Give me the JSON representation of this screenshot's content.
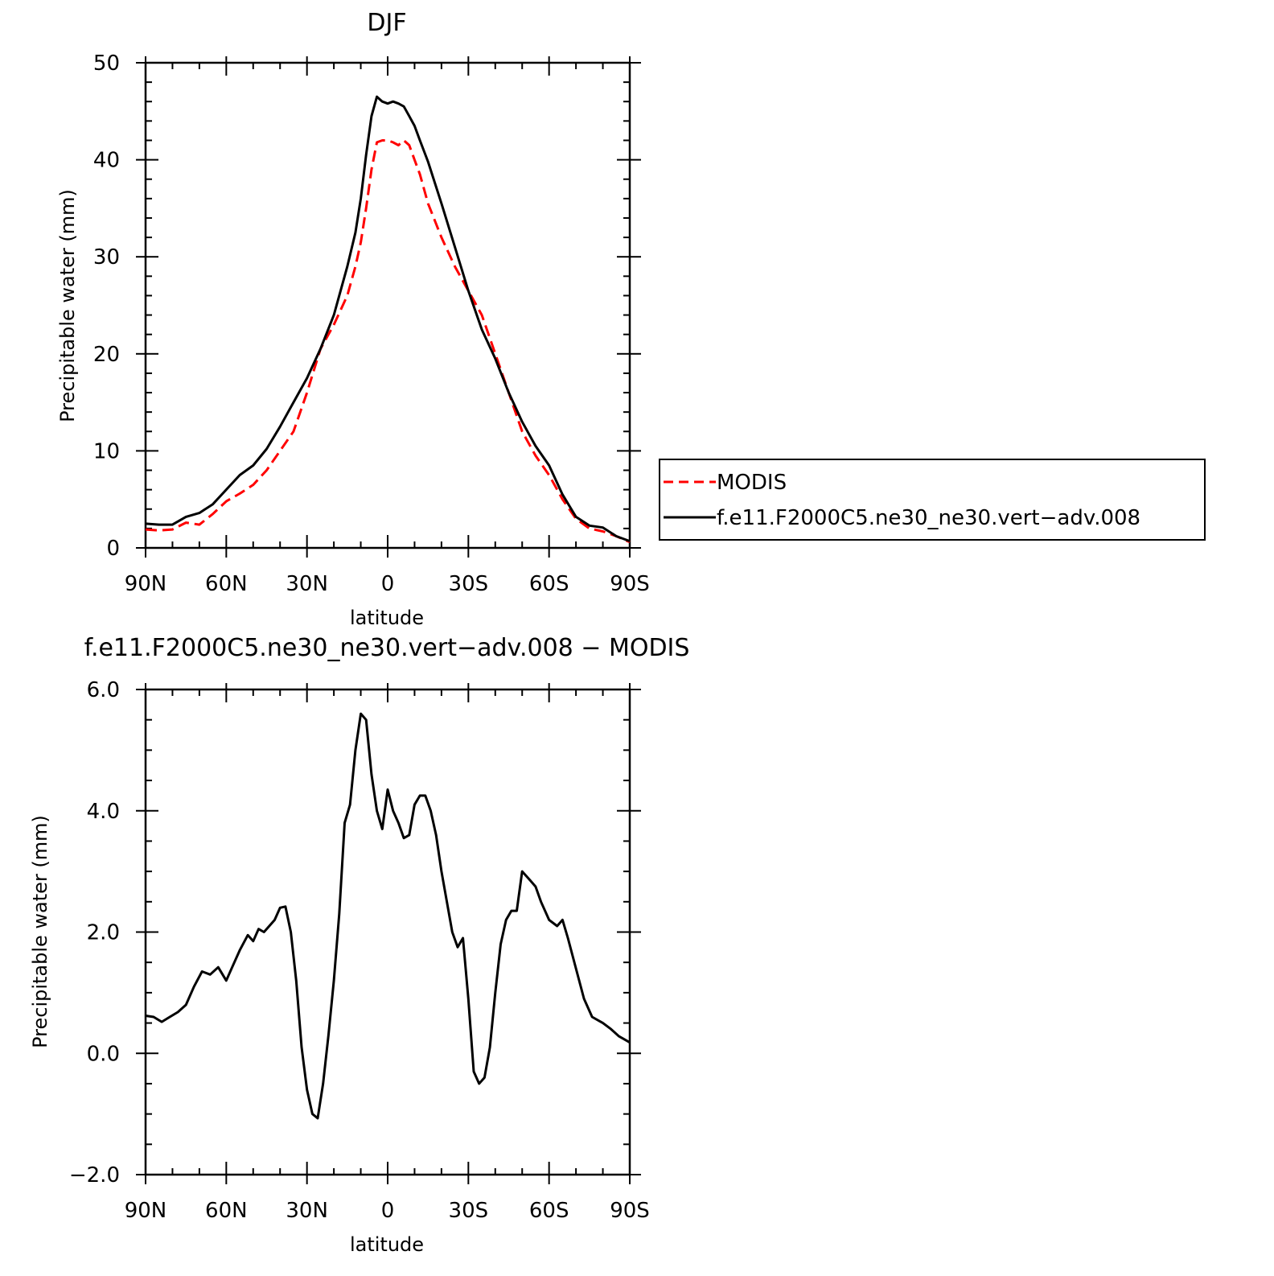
{
  "chart_data": [
    {
      "type": "line",
      "title": "DJF",
      "xlabel": "latitude",
      "ylabel": "Precipitable water (mm)",
      "xlim": [
        90,
        -90
      ],
      "ylim": [
        0,
        50
      ],
      "x_ticks": [
        90,
        60,
        30,
        0,
        -30,
        -60,
        -90
      ],
      "x_tick_labels": [
        "90N",
        "60N",
        "30N",
        "0",
        "30S",
        "60S",
        "90S"
      ],
      "y_ticks": [
        0,
        10,
        20,
        30,
        40,
        50
      ],
      "y_tick_labels": [
        "0",
        "10",
        "20",
        "30",
        "40",
        "50"
      ],
      "grid": false,
      "legend_position": "right",
      "series": [
        {
          "name": "MODIS",
          "color": "#ff0000",
          "dash": true,
          "x": [
            90,
            85,
            80,
            75,
            70,
            65,
            60,
            55,
            50,
            45,
            40,
            35,
            30,
            25,
            20,
            15,
            12,
            10,
            8,
            6,
            4,
            2,
            0,
            -2,
            -4,
            -6,
            -8,
            -10,
            -12,
            -15,
            -20,
            -25,
            -30,
            -35,
            -40,
            -45,
            -50,
            -55,
            -60,
            -65,
            -70,
            -75,
            -80,
            -85,
            -90
          ],
          "y": [
            1.9,
            1.8,
            1.9,
            2.6,
            2.4,
            3.5,
            4.8,
            5.6,
            6.5,
            8.0,
            10.0,
            12.0,
            16.0,
            20.5,
            23.0,
            26.0,
            29.0,
            31.5,
            35.0,
            39.0,
            41.8,
            42.0,
            42.0,
            41.8,
            41.5,
            42.0,
            41.5,
            40.0,
            38.5,
            35.5,
            32.0,
            29.0,
            26.5,
            24.0,
            20.0,
            16.0,
            12.0,
            9.5,
            7.5,
            5.0,
            3.0,
            2.0,
            1.7,
            1.2,
            0.6
          ]
        },
        {
          "name": "f.e11.F2000C5.ne30_ne30.vert−adv.008",
          "color": "#000000",
          "dash": false,
          "x": [
            90,
            85,
            80,
            75,
            70,
            65,
            60,
            55,
            50,
            45,
            40,
            35,
            30,
            25,
            20,
            15,
            12,
            10,
            8,
            6,
            4,
            2,
            0,
            -2,
            -4,
            -6,
            -8,
            -10,
            -12,
            -15,
            -20,
            -25,
            -30,
            -35,
            -40,
            -45,
            -50,
            -55,
            -60,
            -65,
            -70,
            -75,
            -80,
            -85,
            -90
          ],
          "y": [
            2.5,
            2.4,
            2.4,
            3.2,
            3.6,
            4.5,
            6.0,
            7.5,
            8.5,
            10.2,
            12.5,
            15.0,
            17.5,
            20.5,
            24.0,
            29.0,
            32.5,
            36.0,
            40.5,
            44.5,
            46.5,
            46.0,
            45.8,
            46.0,
            45.8,
            45.5,
            44.5,
            43.5,
            42.0,
            39.8,
            35.5,
            31.0,
            26.5,
            22.5,
            19.5,
            16.0,
            13.0,
            10.5,
            8.5,
            5.5,
            3.2,
            2.3,
            2.1,
            1.2,
            0.7
          ]
        }
      ]
    },
    {
      "type": "line",
      "title": "f.e11.F2000C5.ne30_ne30.vert−adv.008 − MODIS",
      "xlabel": "latitude",
      "ylabel": "Precipitable water (mm)",
      "xlim": [
        90,
        -90
      ],
      "ylim": [
        -2,
        6
      ],
      "x_ticks": [
        90,
        60,
        30,
        0,
        -30,
        -60,
        -90
      ],
      "x_tick_labels": [
        "90N",
        "60N",
        "30N",
        "0",
        "30S",
        "60S",
        "90S"
      ],
      "y_ticks": [
        -2,
        0,
        2,
        4,
        6
      ],
      "y_tick_labels": [
        "−2.0",
        "0.0",
        "2.0",
        "4.0",
        "6.0"
      ],
      "grid": false,
      "series": [
        {
          "color": "#000000",
          "dash": false,
          "x": [
            90,
            87,
            84,
            81,
            78,
            75,
            72,
            69,
            66,
            63,
            60,
            58,
            55,
            52,
            50,
            48,
            46,
            44,
            42,
            40,
            38,
            36,
            34,
            32,
            30,
            28,
            26,
            24,
            22,
            20,
            18,
            16,
            14,
            12,
            10,
            8,
            6,
            4,
            2,
            0,
            -2,
            -4,
            -6,
            -8,
            -10,
            -12,
            -14,
            -16,
            -18,
            -20,
            -22,
            -24,
            -26,
            -28,
            -30,
            -32,
            -34,
            -36,
            -38,
            -40,
            -42,
            -44,
            -46,
            -48,
            -50,
            -51,
            -53,
            -55,
            -57,
            -60,
            -63,
            -65,
            -67,
            -70,
            -73,
            -76,
            -80,
            -83,
            -86,
            -90
          ],
          "y": [
            0.62,
            0.6,
            0.52,
            0.6,
            0.68,
            0.8,
            1.1,
            1.35,
            1.3,
            1.42,
            1.2,
            1.4,
            1.7,
            1.95,
            1.85,
            2.05,
            2.0,
            2.1,
            2.2,
            2.4,
            2.42,
            2.0,
            1.2,
            0.1,
            -0.6,
            -1.0,
            -1.07,
            -0.5,
            0.3,
            1.2,
            2.3,
            3.8,
            4.1,
            5.0,
            5.6,
            5.5,
            4.6,
            4.0,
            3.7,
            4.35,
            4.0,
            3.8,
            3.55,
            3.6,
            4.1,
            4.25,
            4.25,
            4.0,
            3.6,
            3.0,
            2.5,
            2.0,
            1.75,
            1.9,
            0.9,
            -0.3,
            -0.5,
            -0.4,
            0.1,
            1.0,
            1.8,
            2.2,
            2.35,
            2.35,
            3.0,
            2.95,
            2.85,
            2.75,
            2.5,
            2.2,
            2.1,
            2.2,
            1.9,
            1.4,
            0.9,
            0.6,
            0.5,
            0.4,
            0.28,
            0.18
          ]
        }
      ]
    }
  ]
}
